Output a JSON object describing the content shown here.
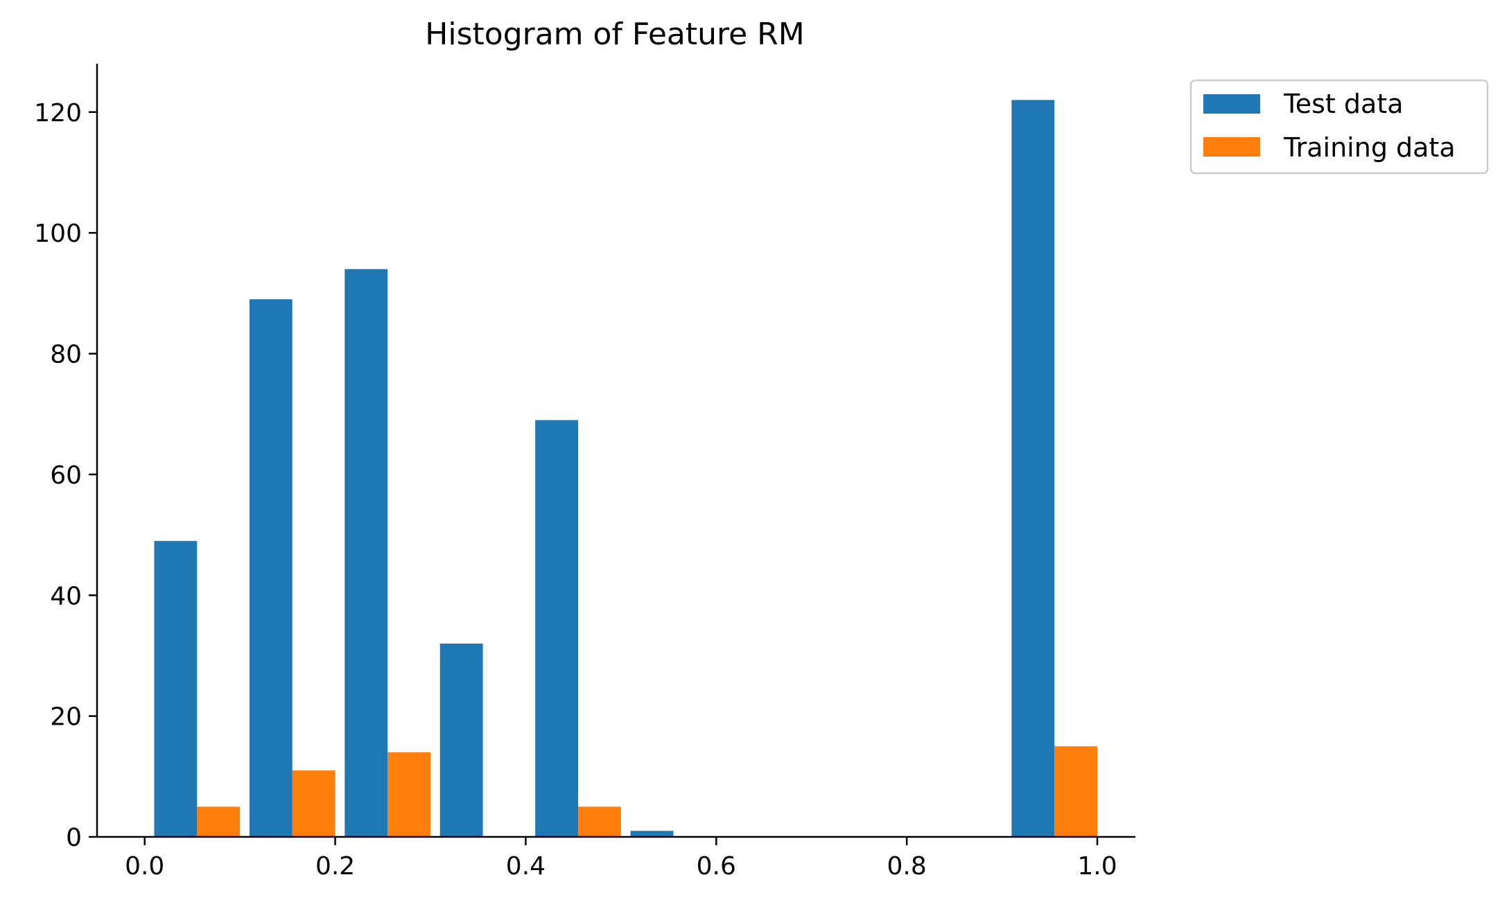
{
  "chart_data": {
    "type": "bar",
    "title": "Histogram of Feature RM",
    "xlabel": "",
    "ylabel": "",
    "xlim": [
      -0.05,
      1.04
    ],
    "ylim": [
      0,
      128
    ],
    "x_ticks": [
      "0.0",
      "0.2",
      "0.4",
      "0.6",
      "0.8",
      "1.0"
    ],
    "x_tick_values": [
      0.0,
      0.2,
      0.4,
      0.6,
      0.8,
      1.0
    ],
    "y_ticks": [
      "0",
      "20",
      "40",
      "60",
      "80",
      "100",
      "120"
    ],
    "y_tick_values": [
      0,
      20,
      40,
      60,
      80,
      100,
      120
    ],
    "bin_edges": [
      0.0,
      0.1,
      0.2,
      0.3,
      0.4,
      0.5,
      0.6,
      0.7,
      0.8,
      0.9,
      1.0
    ],
    "grid": false,
    "legend_position": "upper-right-outside",
    "series": [
      {
        "name": "Test data",
        "color": "#1f77b4",
        "values": [
          49,
          89,
          94,
          32,
          69,
          1,
          0,
          0,
          0,
          122
        ]
      },
      {
        "name": "Training data",
        "color": "#ff7f0e",
        "values": [
          5,
          11,
          14,
          0,
          5,
          0,
          0,
          0,
          0,
          15
        ]
      }
    ]
  }
}
